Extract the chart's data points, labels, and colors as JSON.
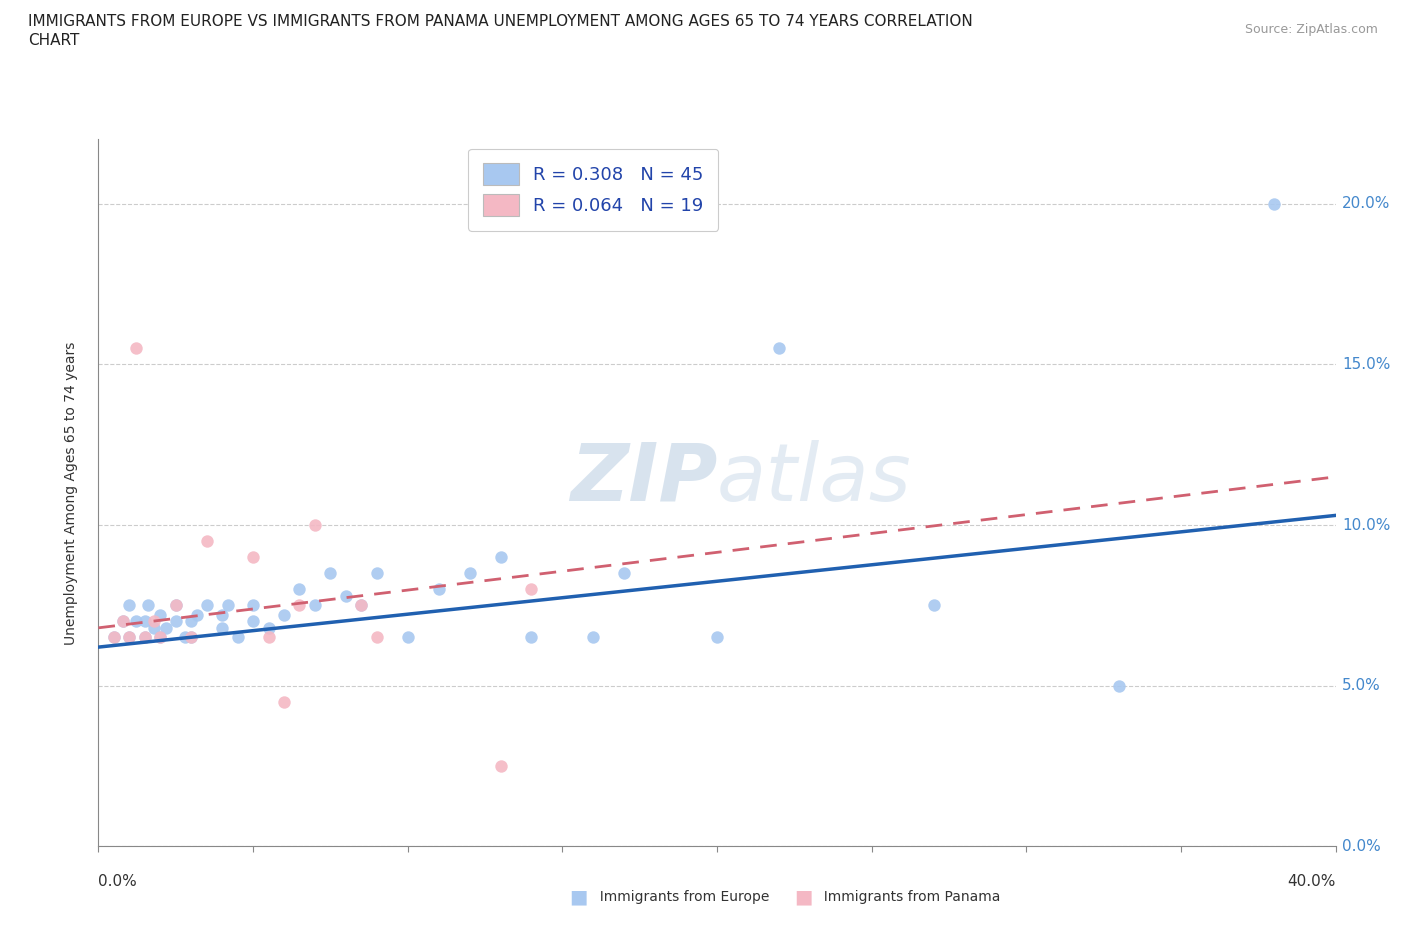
{
  "title_line1": "IMMIGRANTS FROM EUROPE VS IMMIGRANTS FROM PANAMA UNEMPLOYMENT AMONG AGES 65 TO 74 YEARS CORRELATION",
  "title_line2": "CHART",
  "source_text": "Source: ZipAtlas.com",
  "ylabel": "Unemployment Among Ages 65 to 74 years",
  "europe_R": 0.308,
  "europe_N": 45,
  "panama_R": 0.064,
  "panama_N": 19,
  "europe_color": "#a8c8f0",
  "panama_color": "#f4b8c4",
  "europe_line_color": "#2060b0",
  "panama_line_color": "#d06070",
  "watermark_color": "#c8d8e8",
  "xlim": [
    0.0,
    0.4
  ],
  "ylim": [
    0.0,
    0.22
  ],
  "yticks": [
    0.0,
    0.05,
    0.1,
    0.15,
    0.2
  ],
  "ytick_labels": [
    "0.0%",
    "5.0%",
    "10.0%",
    "15.0%",
    "20.0%"
  ],
  "europe_x": [
    0.005,
    0.008,
    0.01,
    0.01,
    0.012,
    0.015,
    0.015,
    0.016,
    0.018,
    0.02,
    0.02,
    0.022,
    0.025,
    0.025,
    0.028,
    0.03,
    0.03,
    0.032,
    0.035,
    0.04,
    0.04,
    0.042,
    0.045,
    0.05,
    0.05,
    0.055,
    0.06,
    0.065,
    0.07,
    0.075,
    0.08,
    0.085,
    0.09,
    0.1,
    0.11,
    0.12,
    0.13,
    0.14,
    0.16,
    0.17,
    0.2,
    0.22,
    0.27,
    0.33,
    0.38
  ],
  "europe_y": [
    0.065,
    0.07,
    0.065,
    0.075,
    0.07,
    0.065,
    0.07,
    0.075,
    0.068,
    0.065,
    0.072,
    0.068,
    0.07,
    0.075,
    0.065,
    0.065,
    0.07,
    0.072,
    0.075,
    0.068,
    0.072,
    0.075,
    0.065,
    0.07,
    0.075,
    0.068,
    0.072,
    0.08,
    0.075,
    0.085,
    0.078,
    0.075,
    0.085,
    0.065,
    0.08,
    0.085,
    0.09,
    0.065,
    0.065,
    0.085,
    0.065,
    0.155,
    0.075,
    0.05,
    0.2
  ],
  "panama_x": [
    0.005,
    0.008,
    0.01,
    0.012,
    0.015,
    0.018,
    0.02,
    0.025,
    0.03,
    0.035,
    0.05,
    0.055,
    0.06,
    0.065,
    0.07,
    0.085,
    0.09,
    0.13,
    0.14
  ],
  "panama_y": [
    0.065,
    0.07,
    0.065,
    0.155,
    0.065,
    0.07,
    0.065,
    0.075,
    0.065,
    0.095,
    0.09,
    0.065,
    0.045,
    0.075,
    0.1,
    0.075,
    0.065,
    0.025,
    0.08
  ],
  "europe_trend_x0": 0.0,
  "europe_trend_y0": 0.062,
  "europe_trend_x1": 0.4,
  "europe_trend_y1": 0.103,
  "panama_trend_x0": 0.0,
  "panama_trend_y0": 0.068,
  "panama_trend_x1": 0.4,
  "panama_trend_y1": 0.115
}
